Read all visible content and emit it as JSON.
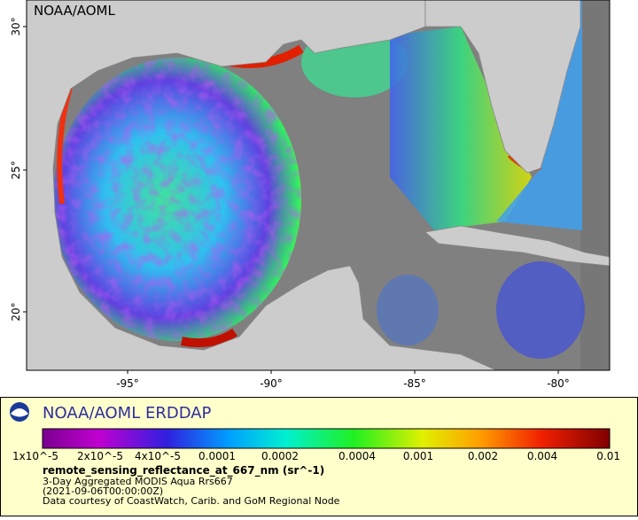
{
  "header": {
    "watermark": "NOAA/AOML"
  },
  "map": {
    "lat_labels": [
      "30°",
      "25°",
      "20°"
    ],
    "lon_labels": [
      "-95°",
      "-90°",
      "-85°",
      "-80°"
    ]
  },
  "legend": {
    "title": "NOAA/AOML ERDDAP",
    "colorbar_labels": [
      "1x10^-5",
      "2x10^-5",
      "4x10^-5",
      "0.0001",
      "0.0002",
      "0.0004",
      "0.001",
      "0.002",
      "0.004",
      "0.01"
    ],
    "variable": "remote_sensing_reflectance_at_667_nm (sr^-1)",
    "lines": [
      "3-Day Aggregated MODIS Aqua Rrs667",
      "(2021-09-06T00:00:00Z)",
      "Data courtesy of CoastWatch, Carib. and GoM Regional Node"
    ]
  }
}
